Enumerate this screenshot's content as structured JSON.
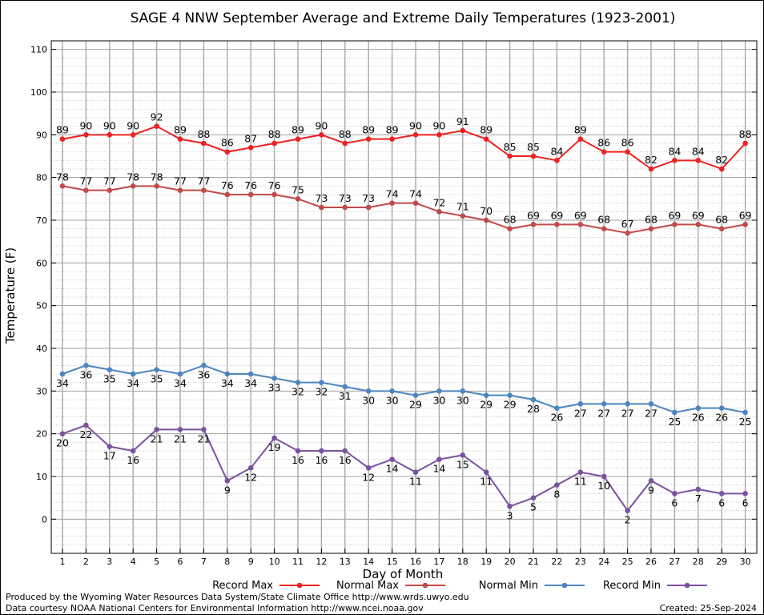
{
  "chart_data": {
    "type": "line",
    "title": "SAGE 4 NNW September Average and Extreme Daily Temperatures (1923-2001)",
    "xlabel": "Day of Month",
    "ylabel": "Temperature (F)",
    "ylim": [
      -8,
      112
    ],
    "yticks": [
      0,
      10,
      20,
      30,
      40,
      50,
      60,
      70,
      80,
      90,
      100,
      110
    ],
    "grid": true,
    "legend_position": "bottom",
    "x": [
      1,
      2,
      3,
      4,
      5,
      6,
      7,
      8,
      9,
      10,
      11,
      12,
      13,
      14,
      15,
      16,
      17,
      18,
      19,
      20,
      21,
      22,
      23,
      24,
      25,
      26,
      27,
      28,
      29,
      30
    ],
    "series": [
      {
        "name": "Record Max",
        "color": "#ee2222",
        "label_position": "above",
        "values": [
          89,
          90,
          90,
          90,
          92,
          89,
          88,
          86,
          87,
          88,
          89,
          90,
          88,
          89,
          89,
          90,
          90,
          91,
          89,
          85,
          85,
          84,
          89,
          86,
          86,
          82,
          84,
          84,
          82,
          88
        ]
      },
      {
        "name": "Normal Max",
        "color": "#c14a4a",
        "label_position": "above",
        "values": [
          78,
          77,
          77,
          78,
          78,
          77,
          77,
          76,
          76,
          76,
          75,
          73,
          73,
          73,
          74,
          74,
          72,
          71,
          70,
          68,
          69,
          69,
          69,
          68,
          67,
          68,
          69,
          69,
          68,
          69
        ]
      },
      {
        "name": "Normal Min",
        "color": "#4d85be",
        "label_position": "below",
        "values": [
          34,
          36,
          35,
          34,
          35,
          34,
          36,
          34,
          34,
          33,
          32,
          32,
          31,
          30,
          30,
          29,
          30,
          30,
          29,
          29,
          28,
          26,
          27,
          27,
          27,
          27,
          25,
          26,
          26,
          25
        ]
      },
      {
        "name": "Record Min",
        "color": "#7a52a0",
        "label_position": "below",
        "values": [
          20,
          22,
          17,
          16,
          21,
          21,
          21,
          9,
          12,
          19,
          16,
          16,
          16,
          12,
          14,
          11,
          14,
          15,
          11,
          3,
          5,
          8,
          11,
          10,
          2,
          9,
          6,
          7,
          6,
          6
        ]
      }
    ]
  },
  "footer": {
    "produced_by": "Produced by the Wyoming Water Resources Data System/State Climate Office http://www.wrds.uwyo.edu",
    "data_courtesy": "Data courtesy NOAA National Centers for Environmental Information http://www.ncei.noaa.gov",
    "created": "Created:  25-Sep-2024"
  }
}
